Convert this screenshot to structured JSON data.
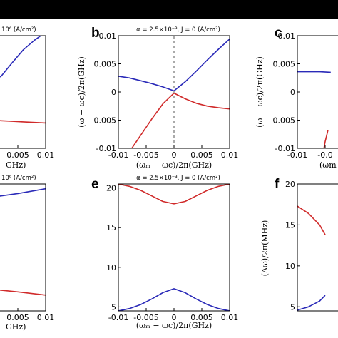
{
  "chart_data": [
    {
      "type": "line",
      "id": "a",
      "panel_label": "",
      "title": "10⁶ (A/cm²)",
      "xlabel": "GHz)",
      "ylabel": "",
      "xlim": [
        -0.01,
        0.01
      ],
      "ylim": [
        -0.01,
        0.01
      ],
      "xticks": [
        0.005,
        0.01
      ],
      "xticklabels": [
        "0.005",
        "0.01"
      ],
      "yticks": [],
      "yticklabels": [],
      "series": [
        {
          "color": "#2a2ab8",
          "x": [
            -0.01,
            -0.008,
            -0.006,
            -0.004,
            -0.002,
            0,
            0.002,
            0.004,
            0.006,
            0.008,
            0.01
          ],
          "y": [
            0.0098,
            0.0082,
            0.0066,
            0.0048,
            0.0032,
            0.0018,
            0.0028,
            0.0052,
            0.0075,
            0.0092,
            0.0106
          ]
        },
        {
          "color": "#d02a2a",
          "x": [
            -0.01,
            -0.008,
            -0.006,
            -0.004,
            -0.002,
            0,
            0.002,
            0.004,
            0.006,
            0.008,
            0.01
          ],
          "y": [
            -0.0028,
            -0.0034,
            -0.004,
            -0.0045,
            -0.0049,
            -0.005,
            -0.0051,
            -0.0052,
            -0.0053,
            -0.0054,
            -0.0055
          ]
        }
      ]
    },
    {
      "type": "line",
      "id": "b",
      "panel_label": "b",
      "title": "α = 2.5×10⁻³, J = 0 (A/cm²)",
      "xlabel": "(ωₘ − ωc)/2π(GHz)",
      "ylabel": "(ω − ωc)/2π(GHz)",
      "xlim": [
        -0.01,
        0.01
      ],
      "ylim": [
        -0.01,
        0.01
      ],
      "xticks": [
        -0.01,
        -0.005,
        0,
        0.005,
        0.01
      ],
      "xticklabels": [
        "-0.01",
        "-0.005",
        "0",
        "0.005",
        "0.01"
      ],
      "yticks": [
        -0.01,
        -0.005,
        0,
        0.005,
        0.01
      ],
      "yticklabels": [
        "-0.01",
        "-0.005",
        "0",
        "0.005",
        "0.01"
      ],
      "dashed_line_x": 0,
      "series": [
        {
          "color": "#2a2ab8",
          "x": [
            -0.01,
            -0.008,
            -0.006,
            -0.004,
            -0.002,
            0,
            0.002,
            0.004,
            0.006,
            0.008,
            0.01
          ],
          "y": [
            0.0028,
            0.0025,
            0.002,
            0.0015,
            0.0009,
            0.0002,
            0.0018,
            0.0037,
            0.0057,
            0.0076,
            0.0094
          ]
        },
        {
          "color": "#d02a2a",
          "x": [
            -0.01,
            -0.008,
            -0.006,
            -0.004,
            -0.002,
            0,
            0.002,
            0.004,
            0.006,
            0.008,
            0.01
          ],
          "y": [
            -0.0136,
            -0.0106,
            -0.0077,
            -0.0048,
            -0.0021,
            -0.0002,
            -0.0012,
            -0.002,
            -0.0025,
            -0.0028,
            -0.003
          ]
        }
      ]
    },
    {
      "type": "line",
      "id": "c",
      "panel_label": "c",
      "title": "",
      "xlabel": "(ωm",
      "ylabel": "(ω − ωc)/2π(GHz)",
      "xlim": [
        -0.01,
        0.01
      ],
      "ylim": [
        -0.01,
        0.01
      ],
      "xticks": [
        -0.01,
        -0.005
      ],
      "xticklabels": [
        "-0.01",
        "-0.0"
      ],
      "yticks": [
        -0.01,
        -0.005,
        0,
        0.005,
        0.01
      ],
      "yticklabels": [
        "-0.01",
        "-0.005",
        "0",
        "0.005",
        "0.01"
      ],
      "series": [
        {
          "color": "#2a2ab8",
          "x": [
            -0.01,
            -0.008,
            -0.006,
            -0.004
          ],
          "y": [
            0.0036,
            0.0036,
            0.0036,
            0.0035
          ]
        },
        {
          "color": "#d02a2a",
          "x": [
            -0.0055,
            -0.005,
            -0.0045
          ],
          "y": [
            -0.0115,
            -0.0088,
            -0.0068
          ]
        }
      ]
    },
    {
      "type": "line",
      "id": "d",
      "panel_label": "",
      "title": "10⁶ (A/cm²)",
      "xlabel": "GHz)",
      "ylabel": "",
      "xlim": [
        -0.01,
        0.01
      ],
      "ylim": [
        4.5,
        20.5
      ],
      "xticks": [
        0.005,
        0.01
      ],
      "xticklabels": [
        "0.005",
        "0.01"
      ],
      "yticks": [],
      "yticklabels": [],
      "series": [
        {
          "color": "#2a2ab8",
          "x": [
            -0.01,
            -0.005,
            0,
            0.005,
            0.01
          ],
          "y": [
            18.0,
            18.4,
            18.8,
            19.3,
            19.9
          ]
        },
        {
          "color": "#d02a2a",
          "x": [
            -0.01,
            -0.005,
            0,
            0.005,
            0.01
          ],
          "y": [
            7.9,
            7.6,
            7.25,
            6.9,
            6.5
          ]
        }
      ]
    },
    {
      "type": "line",
      "id": "e",
      "panel_label": "e",
      "title": "α = 2.5×10⁻³, J = 0 (A/cm²)",
      "xlabel": "(ωₘ − ωc)/2π(GHz)",
      "ylabel": "",
      "xlim": [
        -0.01,
        0.01
      ],
      "ylim": [
        4.5,
        20.5
      ],
      "xticks": [
        -0.01,
        -0.005,
        0,
        0.005,
        0.01
      ],
      "xticklabels": [
        "-0.01",
        "-0.005",
        "0",
        "0.005",
        "0.01"
      ],
      "yticks": [
        5,
        10,
        15,
        20
      ],
      "yticklabels": [
        "5",
        "10",
        "15",
        "20"
      ],
      "series": [
        {
          "color": "#d02a2a",
          "x": [
            -0.01,
            -0.008,
            -0.006,
            -0.004,
            -0.002,
            0,
            0.002,
            0.004,
            0.006,
            0.008,
            0.01
          ],
          "y": [
            20.5,
            20.2,
            19.7,
            19.0,
            18.3,
            18.0,
            18.3,
            19.0,
            19.7,
            20.2,
            20.5
          ]
        },
        {
          "color": "#2a2ab8",
          "x": [
            -0.01,
            -0.008,
            -0.006,
            -0.004,
            -0.002,
            0,
            0.002,
            0.004,
            0.006,
            0.008,
            0.01
          ],
          "y": [
            4.5,
            4.8,
            5.3,
            6.0,
            6.8,
            7.3,
            6.8,
            6.0,
            5.3,
            4.8,
            4.5
          ]
        }
      ]
    },
    {
      "type": "line",
      "id": "f",
      "panel_label": "f",
      "title": "",
      "xlabel": "",
      "ylabel": "(Δω)/2π(MHz)",
      "xlim": [
        -0.01,
        0.01
      ],
      "ylim": [
        4.5,
        20
      ],
      "xticks": [],
      "xticklabels": [],
      "yticks": [
        5,
        10,
        15,
        20
      ],
      "yticklabels": [
        "5",
        "10",
        "15",
        "20"
      ],
      "series": [
        {
          "color": "#d02a2a",
          "x": [
            -0.01,
            -0.008,
            -0.006,
            -0.005
          ],
          "y": [
            17.3,
            16.4,
            15.0,
            13.8
          ]
        },
        {
          "color": "#2a2ab8",
          "x": [
            -0.01,
            -0.008,
            -0.006,
            -0.005
          ],
          "y": [
            4.6,
            5.0,
            5.7,
            6.4
          ]
        }
      ]
    }
  ]
}
